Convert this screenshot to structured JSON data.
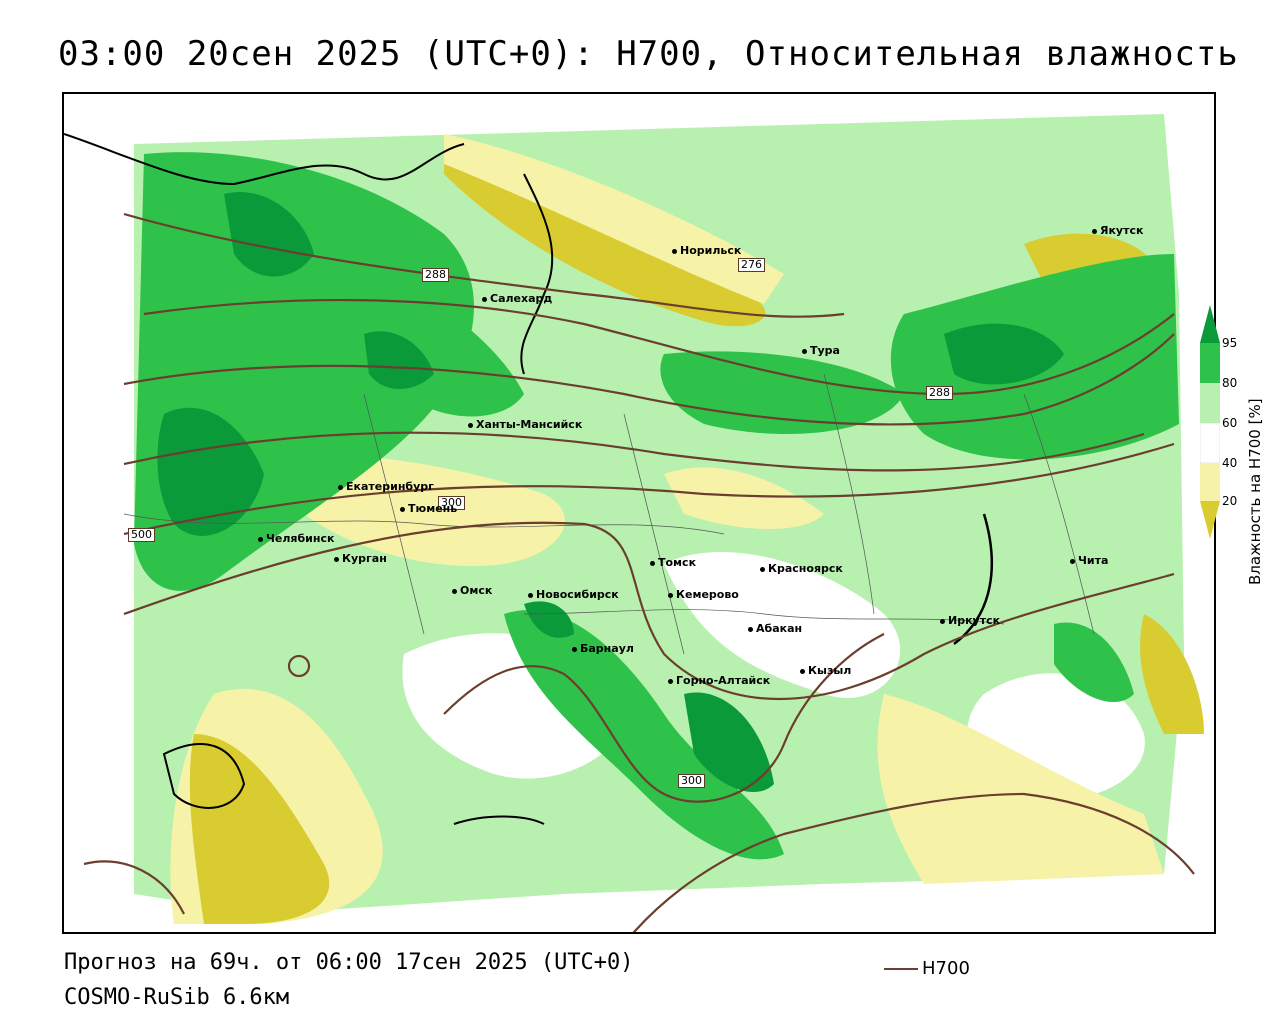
{
  "title": "03:00 20сен 2025 (UTC+0): H700, Относительная влажность",
  "footer": {
    "forecast": "Прогноз на 69ч. от 06:00 17сен 2025 (UTC+0)",
    "model": "COSMO-RuSib 6.6км"
  },
  "legend": {
    "line_label": "H700",
    "line_color": "#6b3e2e",
    "colorbar_title": "Влажность на H700 [%]",
    "ticks": [
      "95",
      "80",
      "60",
      "40",
      "20"
    ],
    "colors": {
      "dark_green": "#0a9a3a",
      "green": "#2ec24a",
      "light_green": "#b8f0b0",
      "white": "#ffffff",
      "light_yellow": "#f6f3a8",
      "yellow": "#d8cc30"
    }
  },
  "contour_labels": [
    "288",
    "276",
    "288",
    "300",
    "500",
    "300"
  ],
  "cities": [
    "Якутск",
    "Норильск",
    "Салехард",
    "Тура",
    "Ханты-Мансийск",
    "Екатеринбург",
    "Тюмень",
    "Челябинск",
    "Курган",
    "Омск",
    "Новосибирск",
    "Томск",
    "Кемерово",
    "Красноярск",
    "Абакан",
    "Барнаул",
    "Горно-Алтайск",
    "Кызыл",
    "Иркутск",
    "Чита"
  ]
}
